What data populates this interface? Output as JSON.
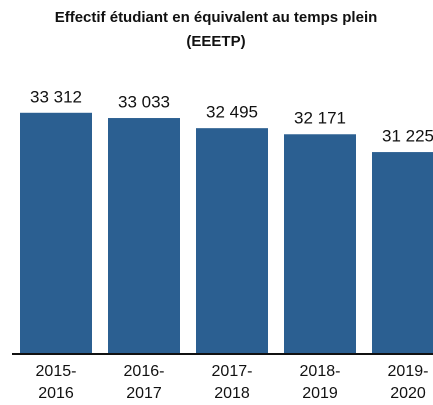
{
  "chart_data": {
    "type": "bar",
    "title": [
      "Effectif étudiant en équivalent au temps plein",
      "(EEETP)"
    ],
    "categories": [
      "2015-2016",
      "2016-2017",
      "2017-2018",
      "2018-2019",
      "2019-2020"
    ],
    "values": [
      33312,
      33033,
      32495,
      32171,
      31225
    ],
    "value_labels": [
      "33 312",
      "33 033",
      "32 495",
      "32 171",
      "31 225"
    ],
    "color": "#2b5f91",
    "ylim": [
      20500,
      35000
    ]
  }
}
